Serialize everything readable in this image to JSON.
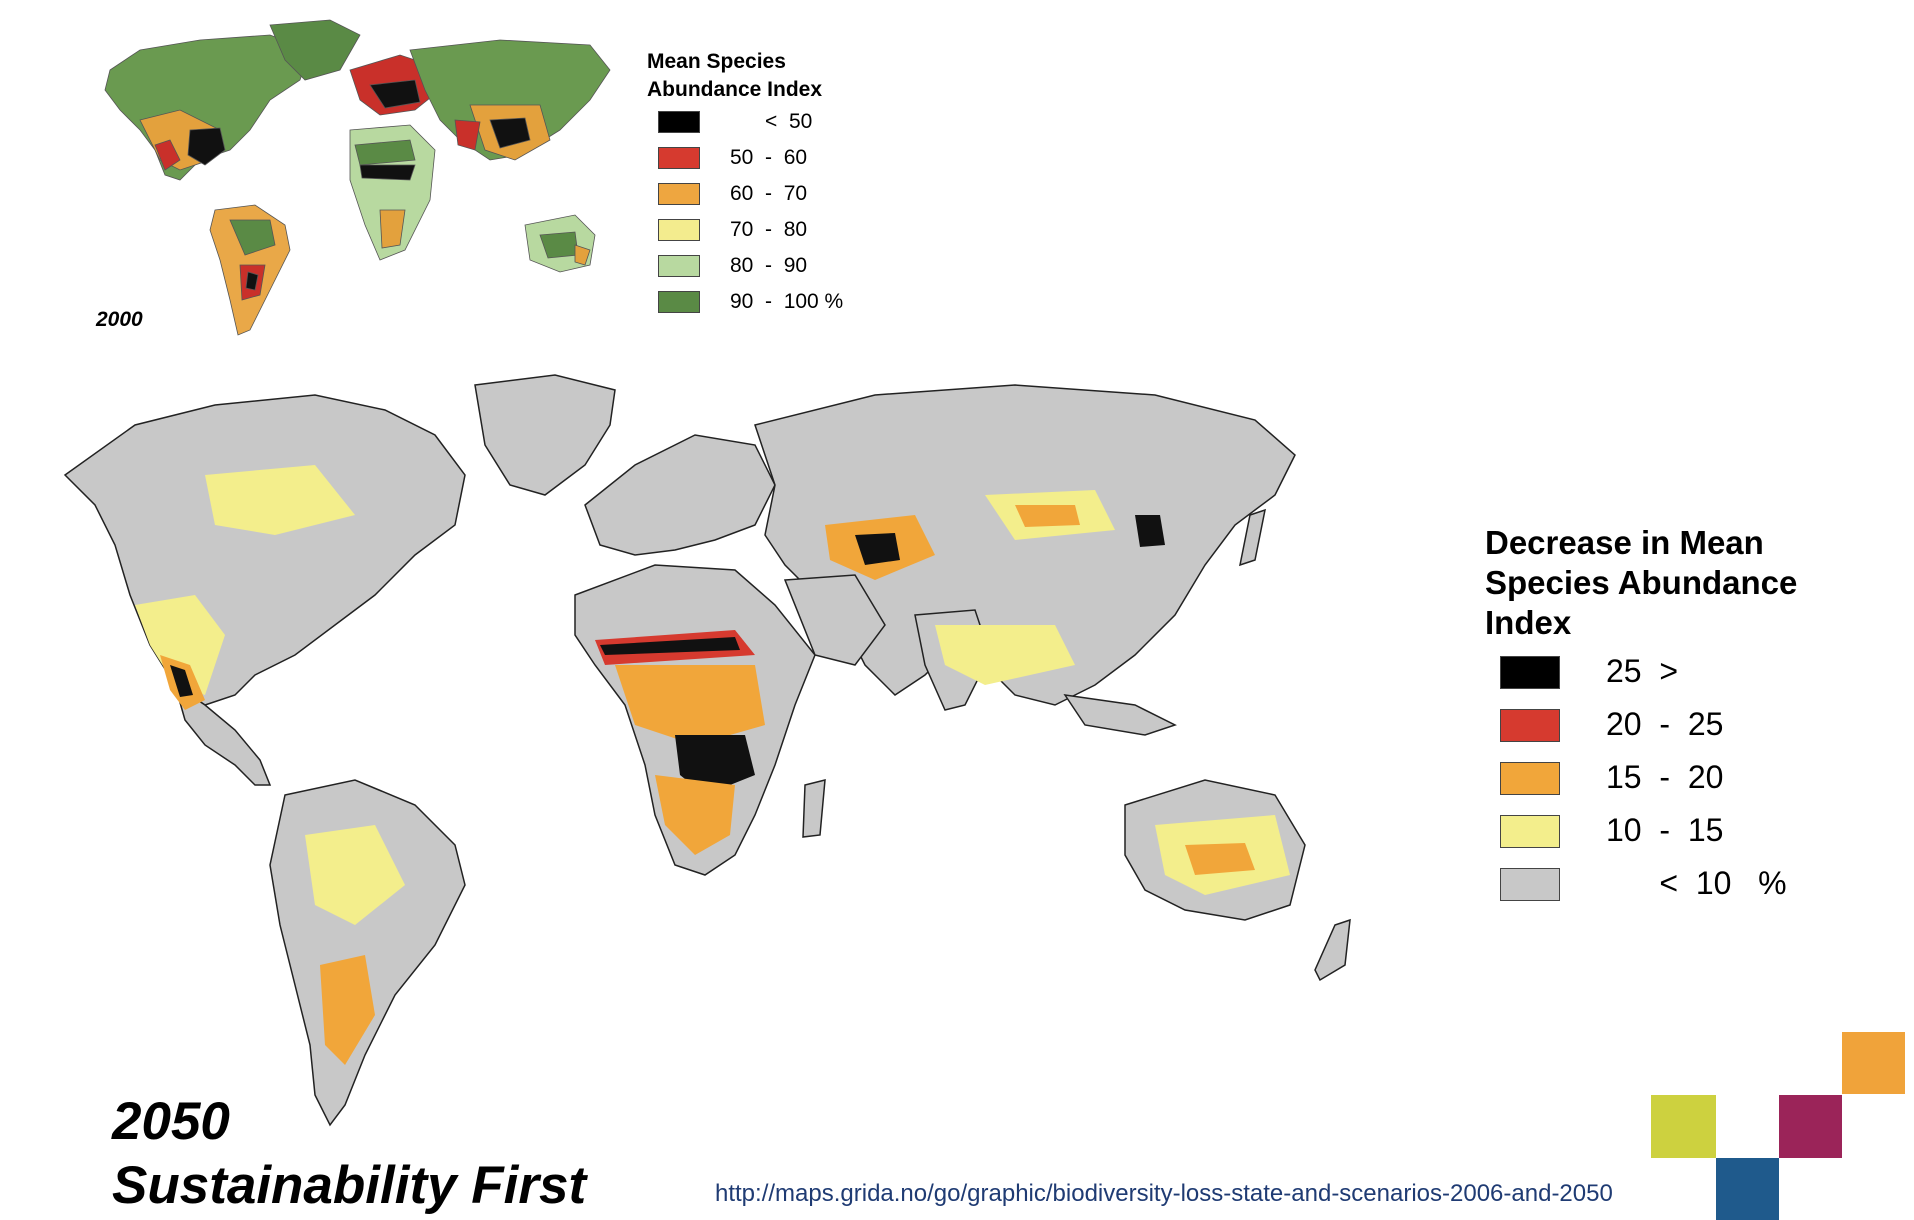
{
  "map_2000": {
    "year_label": "2000",
    "legend_title_line1": "Mean Species",
    "legend_title_line2": "Abundance Index",
    "legend": [
      {
        "label": "      <  50",
        "color": "#000000"
      },
      {
        "label": "50  -  60",
        "color": "#d63a2f"
      },
      {
        "label": "60  -  70",
        "color": "#eea640"
      },
      {
        "label": "70  -  80",
        "color": "#f3ec8e"
      },
      {
        "label": "80  -  90",
        "color": "#b8d9a0"
      },
      {
        "label": "90  -  100 %",
        "color": "#5a8a45"
      }
    ]
  },
  "map_2050": {
    "legend_title_line1": "Decrease in Mean",
    "legend_title_line2": "Species Abundance",
    "legend_title_line3": "Index",
    "legend": [
      {
        "label": "25  >",
        "color": "#000000"
      },
      {
        "label": "20  -  25",
        "color": "#d63a2f"
      },
      {
        "label": "15  -  20",
        "color": "#f1a63a"
      },
      {
        "label": "10  -  15",
        "color": "#f3ee8c"
      },
      {
        "label": "      <  10   %",
        "color": "#c8c8c8"
      }
    ],
    "year_label": "2050",
    "scenario_label": "Sustainability First"
  },
  "source_url": "http://maps.grida.no/go/graphic/biodiversity-loss-state-and-scenarios-2006-and-2050",
  "decor_colors": {
    "orange": "#f0a33a",
    "lime": "#cdd13f",
    "plum": "#9b2459",
    "blue": "#1f5a8c"
  }
}
